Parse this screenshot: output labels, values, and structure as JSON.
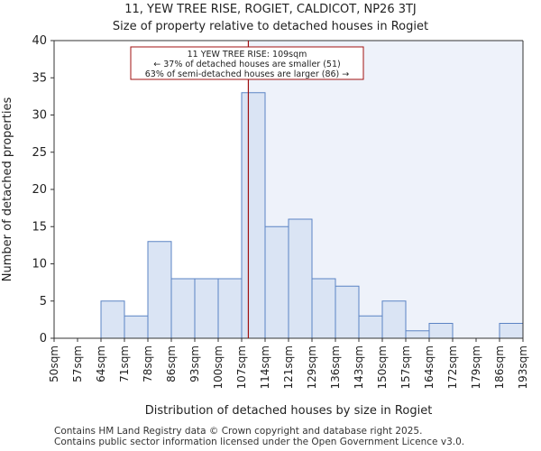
{
  "header": {
    "title": "11, YEW TREE RISE, ROGIET, CALDICOT, NP26 3TJ",
    "subtitle": "Size of property relative to detached houses in Rogiet"
  },
  "footer": {
    "line1": "Contains HM Land Registry data © Crown copyright and database right 2025.",
    "line2": "Contains public sector information licensed under the Open Government Licence v3.0."
  },
  "chart_data": {
    "type": "bar",
    "title": "Size of property relative to detached houses in Rogiet",
    "xlabel": "Distribution of detached houses by size in Rogiet",
    "ylabel": "Number of detached properties",
    "bin_edges": [
      "50sqm",
      "57sqm",
      "64sqm",
      "71sqm",
      "78sqm",
      "86sqm",
      "93sqm",
      "100sqm",
      "107sqm",
      "114sqm",
      "121sqm",
      "129sqm",
      "136sqm",
      "143sqm",
      "150sqm",
      "157sqm",
      "164sqm",
      "172sqm",
      "179sqm",
      "186sqm",
      "193sqm"
    ],
    "values": [
      0,
      0,
      5,
      3,
      13,
      8,
      8,
      8,
      33,
      15,
      16,
      8,
      7,
      3,
      5,
      1,
      2,
      0,
      0,
      2
    ],
    "ylim": [
      0,
      40
    ],
    "yticks": [
      0,
      5,
      10,
      15,
      20,
      25,
      30,
      35,
      40
    ],
    "grid": false,
    "marker": {
      "value": 109
    },
    "annotation": {
      "line1": "11 YEW TREE RISE: 109sqm",
      "line2": "← 37% of detached houses are smaller (51)",
      "line3": "63% of semi-detached houses are larger (86) →"
    },
    "colors": {
      "bar_fill": "#dae4f4",
      "bar_edge": "#5b83c4",
      "shade": "#eef2fa",
      "marker": "#a01010",
      "box_edge": "#a01010"
    }
  }
}
